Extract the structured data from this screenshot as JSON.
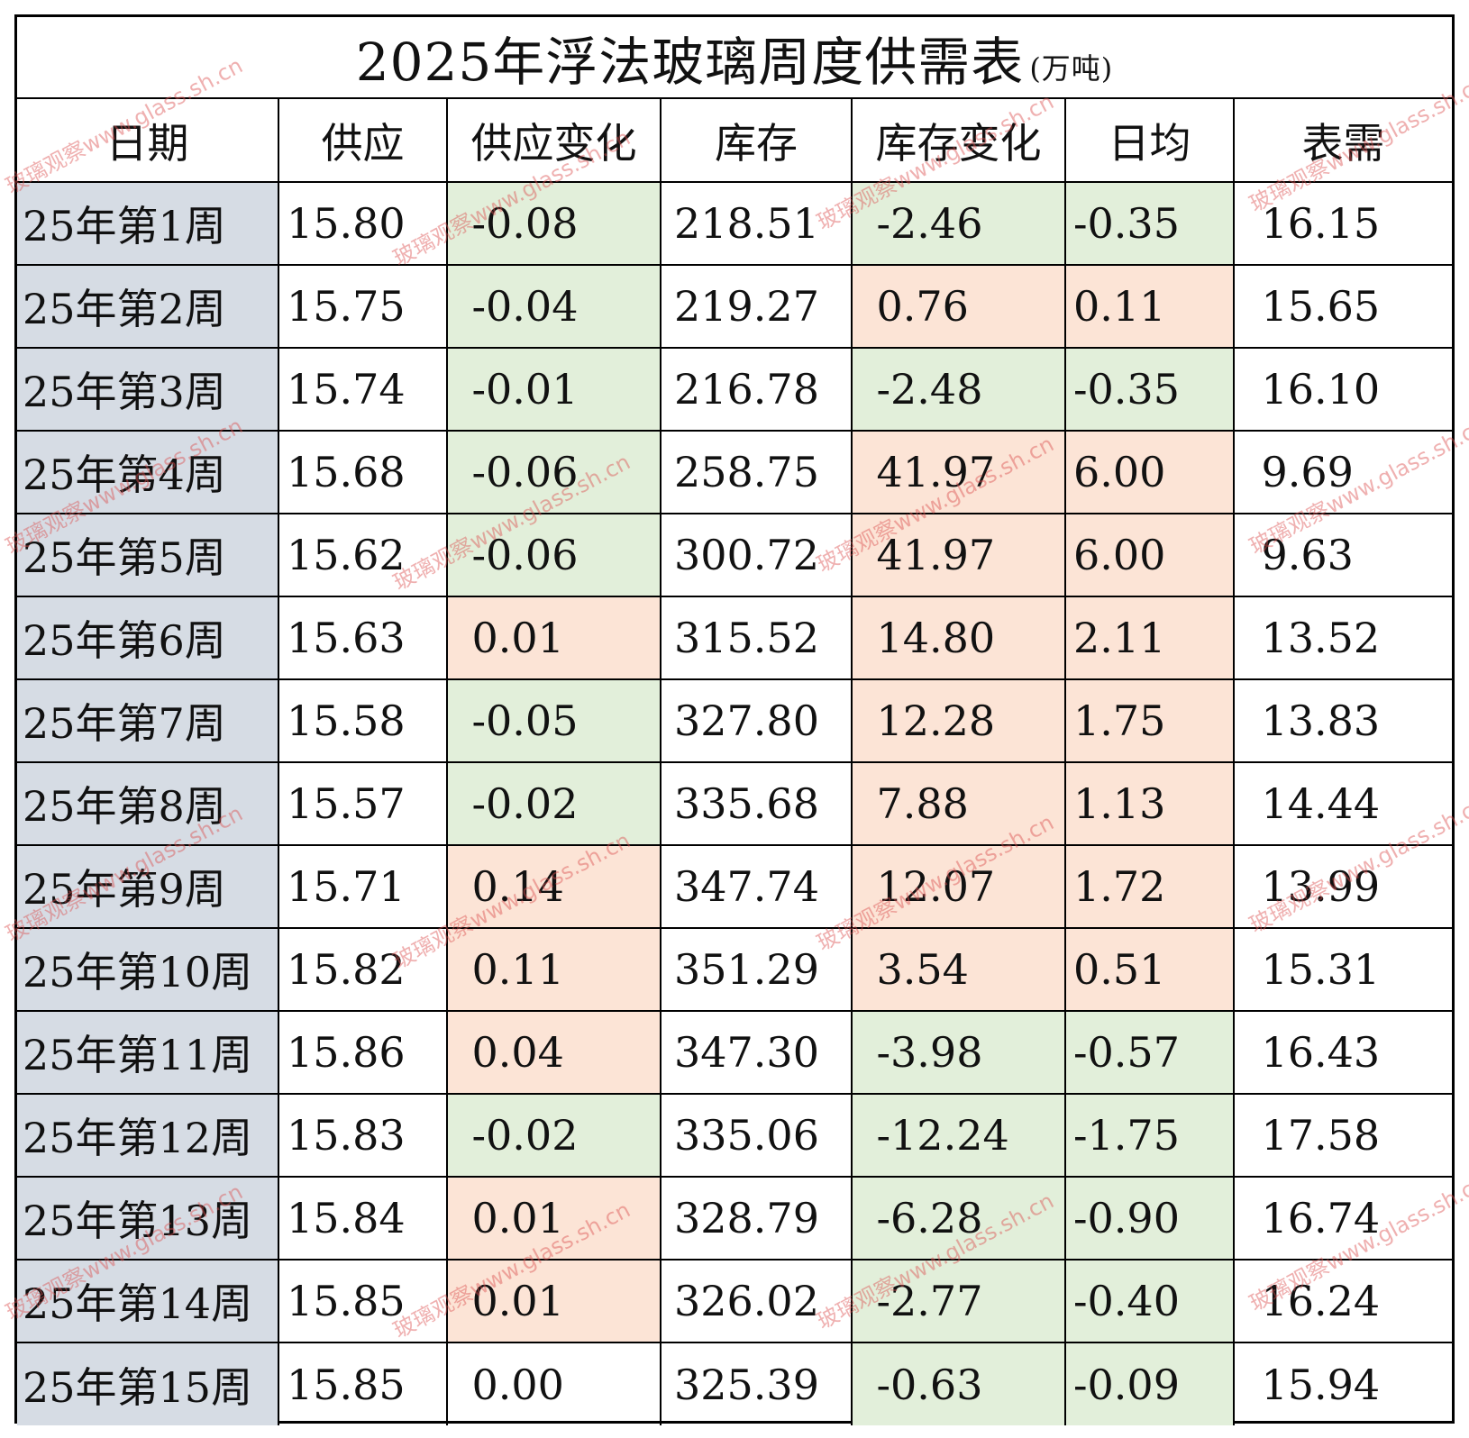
{
  "title": "2025年浮法玻璃周度供需表",
  "unit": "(万吨)",
  "headers": [
    "日期",
    "供应",
    "供应变化",
    "库存",
    "库存变化",
    "日均",
    "表需"
  ],
  "rows": [
    {
      "date": "25年第1周",
      "supply": "15.80",
      "supply_change": "-0.08",
      "supply_change_sign": "neg",
      "inventory": "218.51",
      "inventory_change": "-2.46",
      "inventory_change_sign": "neg",
      "daily_avg": "-0.35",
      "daily_avg_sign": "neg",
      "apparent_demand": "16.15"
    },
    {
      "date": "25年第2周",
      "supply": "15.75",
      "supply_change": "-0.04",
      "supply_change_sign": "neg",
      "inventory": "219.27",
      "inventory_change": "0.76",
      "inventory_change_sign": "pos",
      "daily_avg": "0.11",
      "daily_avg_sign": "pos",
      "apparent_demand": "15.65"
    },
    {
      "date": "25年第3周",
      "supply": "15.74",
      "supply_change": "-0.01",
      "supply_change_sign": "neg",
      "inventory": "216.78",
      "inventory_change": "-2.48",
      "inventory_change_sign": "neg",
      "daily_avg": "-0.35",
      "daily_avg_sign": "neg",
      "apparent_demand": "16.10"
    },
    {
      "date": "25年第4周",
      "supply": "15.68",
      "supply_change": "-0.06",
      "supply_change_sign": "neg",
      "inventory": "258.75",
      "inventory_change": "41.97",
      "inventory_change_sign": "pos",
      "daily_avg": "6.00",
      "daily_avg_sign": "pos",
      "apparent_demand": "9.69"
    },
    {
      "date": "25年第5周",
      "supply": "15.62",
      "supply_change": "-0.06",
      "supply_change_sign": "neg",
      "inventory": "300.72",
      "inventory_change": "41.97",
      "inventory_change_sign": "pos",
      "daily_avg": "6.00",
      "daily_avg_sign": "pos",
      "apparent_demand": "9.63"
    },
    {
      "date": "25年第6周",
      "supply": "15.63",
      "supply_change": "0.01",
      "supply_change_sign": "pos",
      "inventory": "315.52",
      "inventory_change": "14.80",
      "inventory_change_sign": "pos",
      "daily_avg": "2.11",
      "daily_avg_sign": "pos",
      "apparent_demand": "13.52"
    },
    {
      "date": "25年第7周",
      "supply": "15.58",
      "supply_change": "-0.05",
      "supply_change_sign": "neg",
      "inventory": "327.80",
      "inventory_change": "12.28",
      "inventory_change_sign": "pos",
      "daily_avg": "1.75",
      "daily_avg_sign": "pos",
      "apparent_demand": "13.83"
    },
    {
      "date": "25年第8周",
      "supply": "15.57",
      "supply_change": "-0.02",
      "supply_change_sign": "neg",
      "inventory": "335.68",
      "inventory_change": "7.88",
      "inventory_change_sign": "pos",
      "daily_avg": "1.13",
      "daily_avg_sign": "pos",
      "apparent_demand": "14.44"
    },
    {
      "date": "25年第9周",
      "supply": "15.71",
      "supply_change": "0.14",
      "supply_change_sign": "pos",
      "inventory": "347.74",
      "inventory_change": "12.07",
      "inventory_change_sign": "pos",
      "daily_avg": "1.72",
      "daily_avg_sign": "pos",
      "apparent_demand": "13.99"
    },
    {
      "date": "25年第10周",
      "supply": "15.82",
      "supply_change": "0.11",
      "supply_change_sign": "pos",
      "inventory": "351.29",
      "inventory_change": "3.54",
      "inventory_change_sign": "pos",
      "daily_avg": "0.51",
      "daily_avg_sign": "pos",
      "apparent_demand": "15.31"
    },
    {
      "date": "25年第11周",
      "supply": "15.86",
      "supply_change": "0.04",
      "supply_change_sign": "pos",
      "inventory": "347.30",
      "inventory_change": "-3.98",
      "inventory_change_sign": "neg",
      "daily_avg": "-0.57",
      "daily_avg_sign": "neg",
      "apparent_demand": "16.43"
    },
    {
      "date": "25年第12周",
      "supply": "15.83",
      "supply_change": "-0.02",
      "supply_change_sign": "neg",
      "inventory": "335.06",
      "inventory_change": "-12.24",
      "inventory_change_sign": "neg",
      "daily_avg": "-1.75",
      "daily_avg_sign": "neg",
      "apparent_demand": "17.58"
    },
    {
      "date": "25年第13周",
      "supply": "15.84",
      "supply_change": "0.01",
      "supply_change_sign": "pos",
      "inventory": "328.79",
      "inventory_change": "-6.28",
      "inventory_change_sign": "neg",
      "daily_avg": "-0.90",
      "daily_avg_sign": "neg",
      "apparent_demand": "16.74"
    },
    {
      "date": "25年第14周",
      "supply": "15.85",
      "supply_change": "0.01",
      "supply_change_sign": "pos",
      "inventory": "326.02",
      "inventory_change": "-2.77",
      "inventory_change_sign": "neg",
      "daily_avg": "-0.40",
      "daily_avg_sign": "neg",
      "apparent_demand": "16.24"
    },
    {
      "date": "25年第15周",
      "supply": "15.85",
      "supply_change": "0.00",
      "supply_change_sign": "none",
      "inventory": "325.39",
      "inventory_change": "-0.63",
      "inventory_change_sign": "neg",
      "daily_avg": "-0.09",
      "daily_avg_sign": "neg",
      "apparent_demand": "15.94"
    }
  ],
  "colors": {
    "date_column_bg": "#d6dce4",
    "negative_bg": "#e2efda",
    "positive_bg": "#fce4d6"
  },
  "watermark": {
    "text_cn": "玻璃观察",
    "text_url": "www.glass.sh.cn"
  }
}
